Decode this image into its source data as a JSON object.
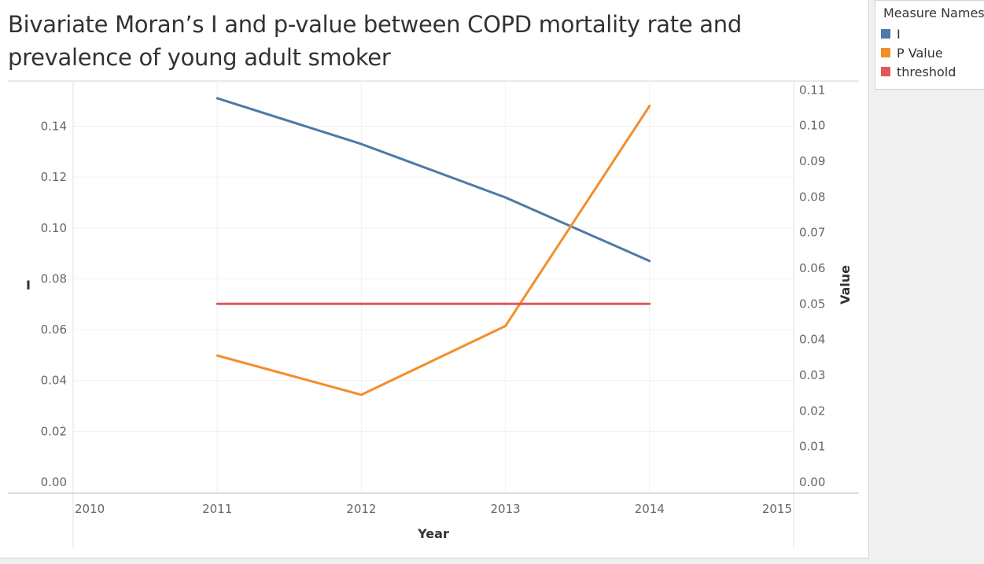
{
  "title": "Bivariate Moran’s I and p-value between COPD mortality rate and prevalence of young adult smoker",
  "legend": {
    "title": "Measure Names",
    "placement": "top-right",
    "items": [
      {
        "label": "I",
        "color": "#4e79a7"
      },
      {
        "label": "P Value",
        "color": "#f28e2b"
      },
      {
        "label": "threshold",
        "color": "#e15759"
      }
    ]
  },
  "chart_data": {
    "type": "line",
    "title": "Bivariate Moran’s I and p-value between COPD mortality rate and prevalence of young adult smoker",
    "xlabel": "Year",
    "ylabel_left": "I",
    "ylabel_right": "Value",
    "x_ticks": [
      "2010",
      "2011",
      "2012",
      "2013",
      "2014",
      "2015"
    ],
    "x_range": [
      2010,
      2015
    ],
    "y_left": {
      "range": [
        0,
        0.155
      ],
      "ticks": [
        0,
        0.02,
        0.04,
        0.06,
        0.08,
        0.1,
        0.12,
        0.14
      ],
      "tick_labels": [
        "0.00",
        "0.02",
        "0.04",
        "0.06",
        "0.08",
        "0.10",
        "0.12",
        "0.14"
      ]
    },
    "y_right": {
      "range": [
        0,
        0.1105
      ],
      "ticks": [
        0,
        0.01,
        0.02,
        0.03,
        0.04,
        0.05,
        0.06,
        0.07,
        0.08,
        0.09,
        0.1,
        0.11
      ],
      "tick_labels": [
        "0.00",
        "0.01",
        "0.02",
        "0.03",
        "0.04",
        "0.05",
        "0.06",
        "0.07",
        "0.08",
        "0.09",
        "0.10",
        "0.11"
      ]
    },
    "grid": true,
    "series": [
      {
        "name": "I",
        "axis": "left",
        "color": "#4e79a7",
        "x": [
          2011,
          2012,
          2013,
          2014
        ],
        "values": [
          0.151,
          0.133,
          0.112,
          0.087
        ]
      },
      {
        "name": "P Value",
        "axis": "right",
        "color": "#f28e2b",
        "x": [
          2011,
          2012,
          2013,
          2014
        ],
        "values": [
          0.0355,
          0.0245,
          0.0438,
          0.1055
        ]
      },
      {
        "name": "threshold",
        "axis": "right",
        "color": "#e15759",
        "x": [
          2011,
          2012,
          2013,
          2014
        ],
        "values": [
          0.05,
          0.05,
          0.05,
          0.05
        ]
      }
    ]
  }
}
